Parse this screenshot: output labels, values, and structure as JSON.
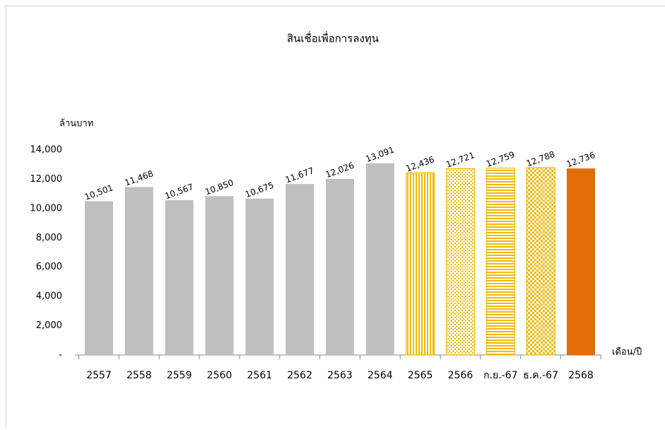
{
  "chart_data": {
    "type": "bar",
    "title": "สินเชื่อเพื่อการลงทุน",
    "y_label": "ล้านบาท",
    "x_label": "เดือน/ปี",
    "categories": [
      "2557",
      "2558",
      "2559",
      "2560",
      "2561",
      "2562",
      "2563",
      "2564",
      "2565",
      "2566",
      "ก.ย.-67",
      "ธ.ค.-67",
      "2568"
    ],
    "values": [
      10501,
      11468,
      10567,
      10850,
      10675,
      11677,
      12026,
      13091,
      12436,
      12721,
      12759,
      12788,
      12736
    ],
    "value_labels": [
      "10,501",
      "11,468",
      "10,567",
      "10,850",
      "10,675",
      "11,677",
      "12,026",
      "13,091",
      "12,436",
      "12,721",
      "12,759",
      "12,788",
      "12,736"
    ],
    "colors": [
      "#bfbfbf",
      "#bfbfbf",
      "#bfbfbf",
      "#bfbfbf",
      "#bfbfbf",
      "#bfbfbf",
      "#bfbfbf",
      "#bfbfbf",
      "#f5b800",
      "#f5b800",
      "#f5b800",
      "#f5b800",
      "#e46c0a"
    ],
    "patterns": [
      "solid",
      "solid",
      "solid",
      "solid",
      "solid",
      "solid",
      "solid",
      "solid",
      "vertical-stripes",
      "dots",
      "horizontal-stripes",
      "checker",
      "solid"
    ],
    "ylim": [
      0,
      14000
    ],
    "yticks": [
      {
        "value": 0,
        "label": "-"
      },
      {
        "value": 2000,
        "label": "2,000"
      },
      {
        "value": 4000,
        "label": "4,000"
      },
      {
        "value": 6000,
        "label": "6,000"
      },
      {
        "value": 8000,
        "label": "8,000"
      },
      {
        "value": 10000,
        "label": "10,000"
      },
      {
        "value": 12000,
        "label": "12,000"
      },
      {
        "value": 14000,
        "label": "14,000"
      }
    ],
    "grid": false
  }
}
